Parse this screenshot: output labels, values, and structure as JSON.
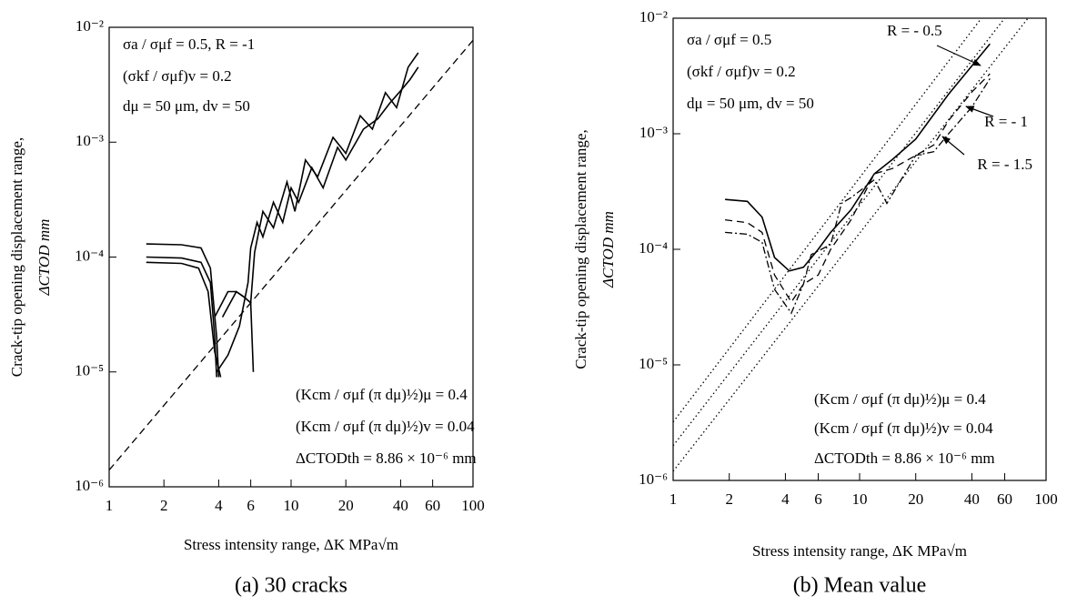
{
  "chart_data": [
    {
      "type": "line",
      "caption": "(a) 30 cracks",
      "x_label": "Stress intensity range,  ΔK   MPa√m",
      "y_label": [
        "Crack-tip opening displacement range,",
        "ΔCTOD   mm"
      ],
      "log_x": true,
      "log_y": true,
      "xlim": [
        1,
        100
      ],
      "xticks": [
        1,
        2,
        4,
        6,
        10,
        20,
        40,
        60,
        100
      ],
      "ylim": [
        1e-06,
        0.01
      ],
      "yticks": [
        {
          "value": 1e-06,
          "label": "10⁻⁶"
        },
        {
          "value": 1e-05,
          "label": "10⁻⁵"
        },
        {
          "value": 0.0001,
          "label": "10⁻⁴"
        },
        {
          "value": 0.001,
          "label": "10⁻³"
        },
        {
          "value": 0.01,
          "label": "10⁻²"
        }
      ],
      "annotations": [
        "σa / σμf = 0.5, R = -1",
        "(σkf / σμf)v = 0.2",
        "dμ = 50 μm, dv = 50",
        "(Kcm / σμf (π dμ)½)μ = 0.4",
        "(Kcm / σμf (π dμ)½)v = 0.04",
        "ΔCTODth = 8.86 × 10⁻⁶  mm"
      ],
      "series": [
        {
          "color": "#000000",
          "dash": "dashed",
          "x": [
            1,
            100
          ],
          "values": [
            1.4e-06,
            0.0077
          ]
        },
        {
          "color": "#000000",
          "dash": "solid",
          "x": [
            1.6,
            2.5,
            3.2,
            3.6,
            3.8,
            3.9
          ],
          "values": [
            0.0001,
            9.8e-05,
            9e-05,
            6e-05,
            2e-05,
            9e-06
          ]
        },
        {
          "color": "#000000",
          "dash": "solid",
          "x": [
            1.6,
            2.5,
            3.2,
            3.6,
            3.9,
            4.0
          ],
          "values": [
            0.00013,
            0.000128,
            0.00012,
            8e-05,
            2e-05,
            9e-06
          ]
        },
        {
          "color": "#000000",
          "dash": "solid",
          "x": [
            1.6,
            2.5,
            3.1,
            3.5,
            3.8,
            4.1
          ],
          "values": [
            9e-05,
            8.8e-05,
            8e-05,
            5e-05,
            1.5e-05,
            9e-06
          ]
        },
        {
          "color": "#000000",
          "dash": "solid",
          "x": [
            3.9,
            4.5,
            5.2,
            5.8,
            6.0,
            6.5,
            7,
            8,
            9,
            10,
            11,
            13,
            15,
            18,
            20,
            25,
            30,
            35,
            40,
            45,
            50
          ],
          "values": [
            1e-05,
            1.4e-05,
            2.5e-05,
            6e-05,
            0.00012,
            0.0002,
            0.00015,
            0.0003,
            0.0002,
            0.0004,
            0.0003,
            0.0006,
            0.0004,
            0.0009,
            0.0007,
            0.0013,
            0.0016,
            0.0022,
            0.0028,
            0.0035,
            0.0045
          ]
        },
        {
          "color": "#000000",
          "dash": "solid",
          "x": [
            4.2,
            5,
            5.5,
            6,
            6.3,
            7,
            8,
            9.5,
            10.5,
            12,
            14,
            17,
            20,
            24,
            28,
            33,
            38,
            44,
            50
          ],
          "values": [
            3e-05,
            5e-05,
            4.5e-05,
            4e-05,
            0.00011,
            0.00025,
            0.00018,
            0.00045,
            0.00025,
            0.0007,
            0.0005,
            0.0011,
            0.0008,
            0.0017,
            0.0013,
            0.0027,
            0.002,
            0.0045,
            0.006
          ]
        },
        {
          "color": "#000000",
          "dash": "solid",
          "x": [
            3.8,
            4.5,
            5,
            5.5,
            6,
            6.2
          ],
          "values": [
            3e-05,
            5e-05,
            5e-05,
            4.5e-05,
            4e-05,
            1e-05
          ]
        }
      ]
    },
    {
      "type": "line",
      "caption": "(b) Mean value",
      "x_label": "Stress intensity range,  ΔK   MPa√m",
      "y_label": [
        "Crack-tip opening displacement range,",
        "ΔCTOD   mm"
      ],
      "log_x": true,
      "log_y": true,
      "xlim": [
        1,
        100
      ],
      "xticks": [
        1,
        2,
        4,
        6,
        10,
        20,
        40,
        60,
        100
      ],
      "ylim": [
        1e-06,
        0.01
      ],
      "yticks": [
        {
          "value": 1e-06,
          "label": "10⁻⁶"
        },
        {
          "value": 1e-05,
          "label": "10⁻⁵"
        },
        {
          "value": 0.0001,
          "label": "10⁻⁴"
        },
        {
          "value": 0.001,
          "label": "10⁻³"
        },
        {
          "value": 0.01,
          "label": "10⁻²"
        }
      ],
      "annotations": [
        "σa / σμf = 0.5",
        "(σkf / σμf)v = 0.2",
        "dμ = 50 μm, dv = 50",
        "(Kcm / σμf (π dμ)½)μ = 0.4",
        "(Kcm / σμf (π dμ)½)v = 0.04",
        "ΔCTODth = 8.86 × 10⁻⁶ mm",
        "R = - 0.5",
        "R = - 1",
        "R = - 1.5"
      ],
      "series": [
        {
          "color": "#000000",
          "dash": "dotted",
          "x": [
            1,
            45
          ],
          "values": [
            3.2e-06,
            0.01
          ]
        },
        {
          "color": "#000000",
          "dash": "dotted",
          "x": [
            1,
            60
          ],
          "values": [
            2e-06,
            0.01
          ]
        },
        {
          "color": "#000000",
          "dash": "dotted",
          "x": [
            1,
            80
          ],
          "values": [
            1.2e-06,
            0.01
          ]
        },
        {
          "color": "#000000",
          "dash": "solid",
          "x": [
            1.9,
            2.5,
            3,
            3.5,
            4.2,
            5,
            6,
            7,
            9,
            12,
            15,
            20,
            30,
            50
          ],
          "values": [
            0.00027,
            0.00026,
            0.00019,
            8.5e-05,
            6.5e-05,
            7e-05,
            0.0001,
            0.00014,
            0.00022,
            0.00045,
            0.0006,
            0.0009,
            0.0022,
            0.006
          ]
        },
        {
          "color": "#000000",
          "dash": "dashed",
          "x": [
            1.9,
            2.5,
            3,
            3.5,
            4.3,
            5,
            6,
            7,
            9,
            12,
            15,
            20,
            25,
            30,
            40,
            50
          ],
          "values": [
            0.00018,
            0.00017,
            0.00014,
            6e-05,
            3.5e-05,
            5e-05,
            6e-05,
            0.0001,
            0.00018,
            0.00045,
            0.0005,
            0.00065,
            0.0008,
            0.0013,
            0.0023,
            0.0033
          ]
        },
        {
          "color": "#000000",
          "dash": "dash-dot",
          "x": [
            1.9,
            2.5,
            3,
            3.5,
            4.3,
            5,
            5.5,
            7,
            8,
            9,
            12,
            14,
            20,
            25,
            30,
            40,
            50
          ],
          "values": [
            0.00014,
            0.000135,
            0.000115,
            4.5e-05,
            2.8e-05,
            5e-05,
            9e-05,
            0.00011,
            0.00025,
            0.00028,
            0.0004,
            0.00025,
            0.00065,
            0.0007,
            0.001,
            0.0017,
            0.003
          ]
        }
      ]
    }
  ]
}
